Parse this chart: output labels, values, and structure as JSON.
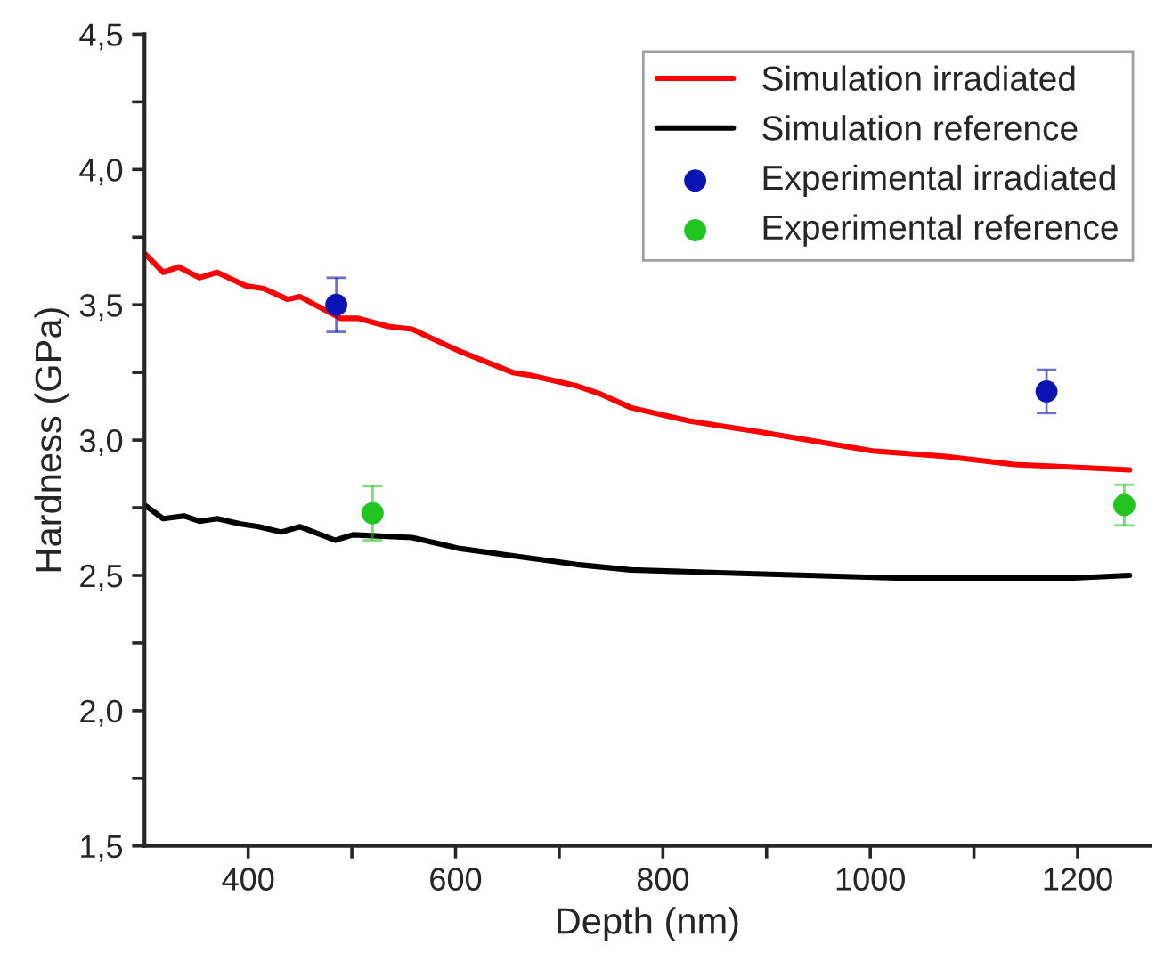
{
  "chart_data": {
    "type": "line",
    "xlabel": "Depth (nm)",
    "ylabel": "Hardness (GPa)",
    "xlim": [
      300,
      1270
    ],
    "ylim": [
      1.5,
      4.5
    ],
    "xticks": [
      {
        "value": 400,
        "label": "400"
      },
      {
        "value": 500,
        "label": null
      },
      {
        "value": 600,
        "label": "600"
      },
      {
        "value": 700,
        "label": null
      },
      {
        "value": 800,
        "label": "800"
      },
      {
        "value": 900,
        "label": null
      },
      {
        "value": 1000,
        "label": "1000"
      },
      {
        "value": 1100,
        "label": null
      },
      {
        "value": 1200,
        "label": "1200"
      }
    ],
    "yticks": [
      {
        "value": 1.5,
        "label": "1,5"
      },
      {
        "value": 1.75,
        "label": null
      },
      {
        "value": 2.0,
        "label": "2,0"
      },
      {
        "value": 2.25,
        "label": null
      },
      {
        "value": 2.5,
        "label": "2,5"
      },
      {
        "value": 2.75,
        "label": null
      },
      {
        "value": 3.0,
        "label": "3,0"
      },
      {
        "value": 3.25,
        "label": null
      },
      {
        "value": 3.5,
        "label": "3,5"
      },
      {
        "value": 3.75,
        "label": null
      },
      {
        "value": 4.0,
        "label": "4,0"
      },
      {
        "value": 4.25,
        "label": null
      },
      {
        "value": 4.5,
        "label": "4,5"
      }
    ],
    "grid": false,
    "legend": "top right",
    "series": [
      {
        "name": "Simulation irradiated",
        "color": "#ff0000",
        "line_style": "solid",
        "x": [
          300,
          318,
          333,
          353,
          370,
          398,
          415,
          438,
          450,
          489,
          506,
          535,
          558,
          603,
          655,
          672,
          717,
          740,
          769,
          826,
          894,
          940,
          1002,
          1071,
          1139,
          1196,
          1250
        ],
        "values": [
          3.69,
          3.62,
          3.64,
          3.6,
          3.62,
          3.57,
          3.56,
          3.52,
          3.53,
          3.45,
          3.45,
          3.42,
          3.41,
          3.33,
          3.25,
          3.24,
          3.2,
          3.17,
          3.12,
          3.07,
          3.03,
          3.0,
          2.96,
          2.94,
          2.91,
          2.9,
          2.89
        ]
      },
      {
        "name": "Simulation reference",
        "color": "#000000",
        "line_style": "solid",
        "x": [
          300,
          318,
          338,
          353,
          370,
          393,
          410,
          432,
          450,
          484,
          501,
          558,
          603,
          660,
          717,
          769,
          854,
          1025,
          1196,
          1250
        ],
        "values": [
          2.76,
          2.71,
          2.72,
          2.7,
          2.71,
          2.69,
          2.68,
          2.66,
          2.68,
          2.63,
          2.65,
          2.64,
          2.6,
          2.57,
          2.54,
          2.52,
          2.51,
          2.49,
          2.49,
          2.5
        ]
      },
      {
        "name": "Experimental irradiated",
        "type": "scatter",
        "color": "#0a14b4",
        "marker": "circle",
        "x": [
          485,
          1170
        ],
        "values": [
          3.5,
          3.18
        ],
        "errors": [
          0.1,
          0.08
        ]
      },
      {
        "name": "Experimental reference",
        "type": "scatter",
        "color": "#22c422",
        "marker": "circle",
        "x": [
          520,
          1245
        ],
        "values": [
          2.73,
          2.76
        ],
        "errors": [
          0.1,
          0.075
        ]
      }
    ]
  }
}
